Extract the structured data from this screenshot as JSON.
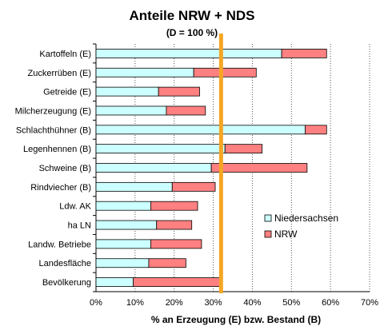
{
  "chart_data": {
    "type": "bar",
    "orientation": "horizontal",
    "stacked": true,
    "title": "Anteile NRW + NDS",
    "subtitle": "(D = 100 %)",
    "xlabel": "% an Erzeugung (E) bzw. Bestand (B)",
    "ylabel": "",
    "xlim": [
      0,
      70
    ],
    "xticks": [
      "0%",
      "10%",
      "20%",
      "30%",
      "40%",
      "50%",
      "60%",
      "70%"
    ],
    "grid": "vertical dotted",
    "legend_position": "right",
    "reference_line": {
      "value": 32,
      "color": "#f5a623"
    },
    "categories": [
      "Kartoffeln (E)",
      "Zuckerrüben (E)",
      "Getreide (E)",
      "Milcherzeugung (E)",
      "Schlachthühner (B)",
      "Legenhennen (B)",
      "Schweine (B)",
      "Rindviecher (B)",
      "Ldw. AK",
      "ha LN",
      "Landw. Betriebe",
      "Landesfläche",
      "Bevölkerung"
    ],
    "series": [
      {
        "name": "Niedersachsen",
        "color": "#ccffff",
        "values": [
          47.5,
          25,
          16,
          18,
          53.5,
          33,
          29.5,
          19.5,
          14,
          15.5,
          14,
          13.5,
          9.5
        ]
      },
      {
        "name": "NRW",
        "color": "#ff8080",
        "values": [
          11.5,
          16,
          10.5,
          10,
          5.5,
          9.5,
          24.5,
          11,
          12,
          9,
          13,
          9.5,
          22.5
        ]
      }
    ]
  }
}
